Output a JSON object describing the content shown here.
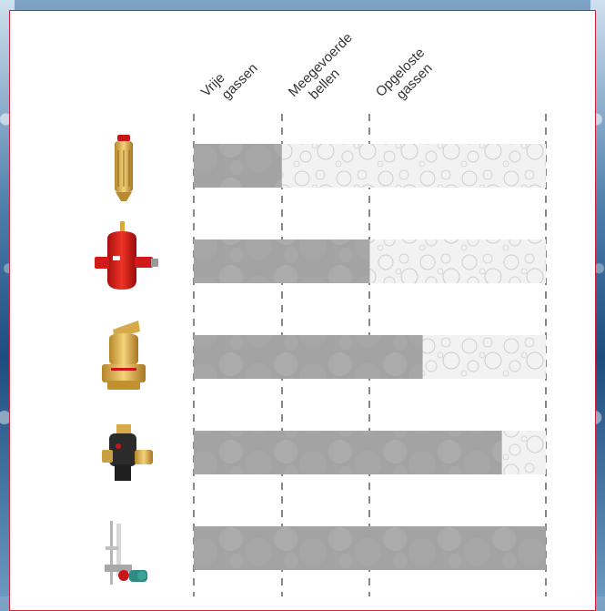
{
  "chart_data": {
    "type": "bar",
    "orientation": "horizontal-stacked",
    "columns": [
      {
        "line1": "Vrije",
        "line2": "gassen"
      },
      {
        "line1": "Meegevoerde",
        "line2": "bellen"
      },
      {
        "line1": "Opgeloste",
        "line2": "gassen"
      }
    ],
    "rows": [
      {
        "icon": "automatic-air-vent-icon",
        "removed": 1.0
      },
      {
        "icon": "red-air-separator-icon",
        "removed": 2.0
      },
      {
        "icon": "brass-air-separator-icon",
        "removed": 2.6
      },
      {
        "icon": "vacuum-degasser-valve-icon",
        "removed": 3.5
      },
      {
        "icon": "vacuum-degassing-unit-icon",
        "removed": 4.0
      }
    ],
    "xlim": [
      0,
      4
    ],
    "grid": "dashed-vertical",
    "colors": {
      "removed": "#a3a3a3",
      "remaining": "#f2f2f2",
      "frame": "#d21f3c",
      "grid": "#888888"
    }
  }
}
